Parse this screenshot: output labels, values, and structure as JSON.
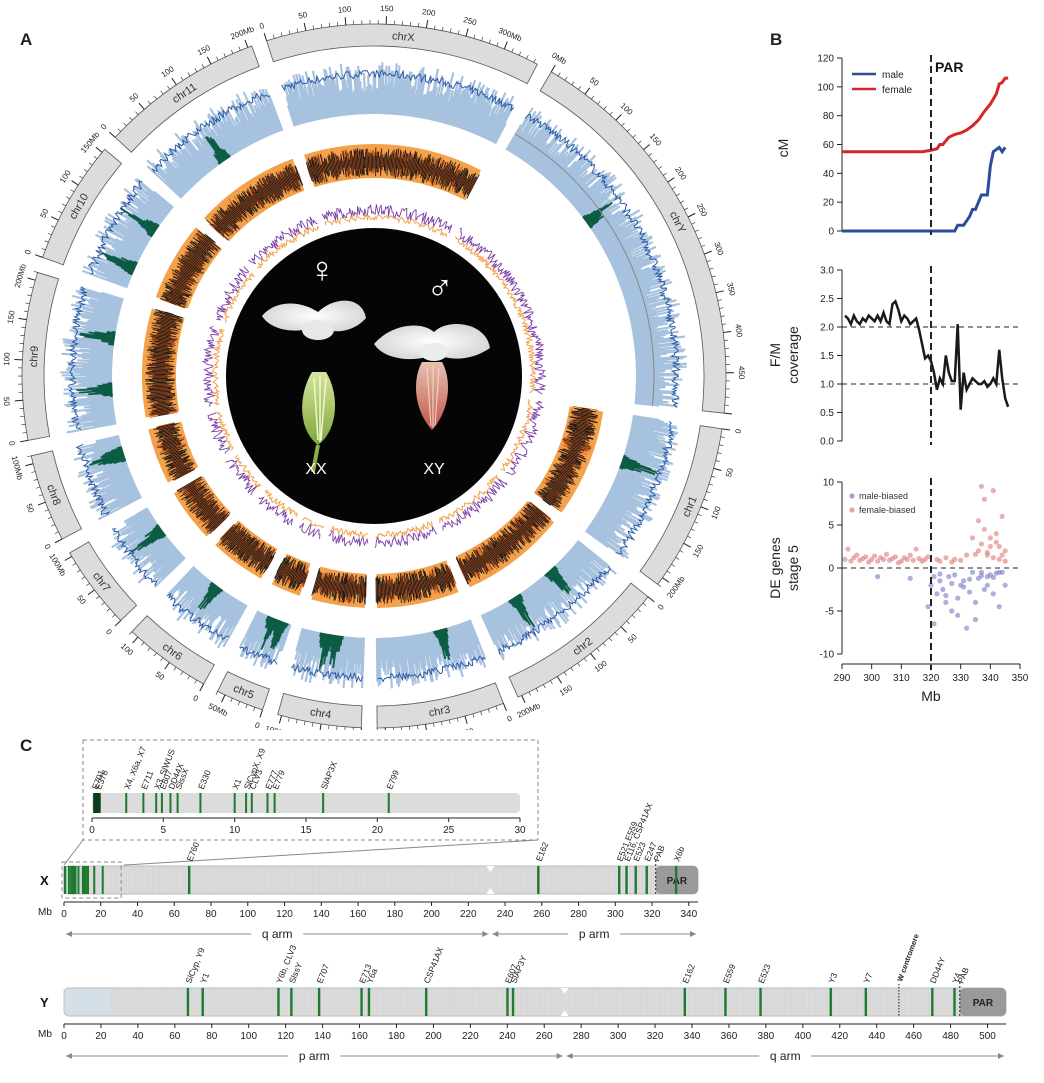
{
  "panels": {
    "a": "A",
    "b": "B",
    "c": "C"
  },
  "circos": {
    "chromosomes": [
      {
        "name": "chrX",
        "len": 345,
        "ticks": [
          0,
          50,
          100,
          150,
          200,
          250,
          300
        ],
        "unit_tick": 300
      },
      {
        "name": "chrY",
        "len": 500,
        "ticks": [
          0,
          50,
          100,
          150,
          200,
          250,
          300,
          350,
          400,
          450
        ],
        "unit_tick": 0
      },
      {
        "name": "chr1",
        "len": 210,
        "ticks": [
          0,
          50,
          100,
          150,
          200
        ],
        "unit_tick": 200
      },
      {
        "name": "chr2",
        "len": 205,
        "ticks": [
          0,
          50,
          100,
          150,
          200
        ],
        "unit_tick": 200
      },
      {
        "name": "chr3",
        "len": 160,
        "ticks": [
          0,
          50,
          100,
          150
        ],
        "unit_tick": 150
      },
      {
        "name": "chr4",
        "len": 105,
        "ticks": [
          0,
          50,
          100
        ],
        "unit_tick": 100
      },
      {
        "name": "chr5",
        "len": 60,
        "ticks": [
          0,
          50
        ],
        "unit_tick": 50
      },
      {
        "name": "chr6",
        "len": 110,
        "ticks": [
          0,
          50,
          100
        ],
        "unit_tick": -1
      },
      {
        "name": "chr7",
        "len": 105,
        "ticks": [
          0,
          50,
          100
        ],
        "unit_tick": 100
      },
      {
        "name": "chr8",
        "len": 110,
        "ticks": [
          0,
          50,
          100
        ],
        "unit_tick": 100
      },
      {
        "name": "chr9",
        "len": 210,
        "ticks": [
          0,
          50,
          100,
          150,
          200
        ],
        "unit_tick": 200
      },
      {
        "name": "chr10",
        "len": 155,
        "ticks": [
          0,
          50,
          100,
          150
        ],
        "unit_tick": 150
      },
      {
        "name": "chr11",
        "len": 205,
        "ticks": [
          0,
          50,
          100,
          150,
          200
        ],
        "unit_tick": 200
      }
    ],
    "unit_suffix": "Mb",
    "center": {
      "female_label": "XX",
      "male_label": "XY",
      "female_symbol": "♀",
      "male_symbol": "♂"
    }
  },
  "chart_data": [
    {
      "type": "line",
      "panel": "B-top",
      "xlim": [
        290,
        350
      ],
      "ylim": [
        0,
        120
      ],
      "yticks": [
        0,
        20,
        40,
        60,
        80,
        100,
        120
      ],
      "ylabel": "cM",
      "annotation": "PAR",
      "vline_x": 320,
      "legend_placement": "top-left",
      "series": [
        {
          "name": "male",
          "color": "#2b4d9c",
          "x": [
            290,
            300,
            310,
            318,
            326,
            328,
            329,
            331,
            333,
            334,
            335,
            337,
            338,
            339,
            340,
            341,
            343,
            344,
            345
          ],
          "y": [
            0,
            0,
            0,
            0,
            0,
            0,
            4,
            4,
            10,
            15,
            15,
            25,
            25,
            25,
            45,
            55,
            58,
            55,
            58
          ]
        },
        {
          "name": "female",
          "color": "#d62728",
          "x": [
            290,
            300,
            310,
            317,
            320,
            322,
            323,
            324,
            326,
            328,
            330,
            332,
            334,
            336,
            338,
            340,
            342,
            343,
            344,
            345,
            346
          ],
          "y": [
            55,
            55,
            55,
            55,
            56,
            57,
            60,
            60,
            65,
            67,
            68,
            70,
            73,
            77,
            83,
            88,
            95,
            102,
            103,
            106,
            106
          ]
        }
      ]
    },
    {
      "type": "line",
      "panel": "B-middle",
      "xlim": [
        290,
        350
      ],
      "ylim": [
        0,
        3
      ],
      "yticks": [
        0.0,
        0.5,
        1.0,
        1.5,
        2.0,
        2.5,
        3.0
      ],
      "ylabel": "F/M coverage",
      "hlines": [
        2.0,
        1.0
      ],
      "vline_x": 320,
      "series": [
        {
          "name": "",
          "color": "#1a1a1a",
          "x": [
            291,
            292,
            293,
            294,
            295,
            296,
            297,
            298,
            299,
            300,
            301,
            302,
            303,
            304,
            305,
            306,
            307,
            308,
            309,
            310,
            311,
            312,
            313,
            314,
            315,
            316,
            317,
            318,
            319,
            320,
            321,
            322,
            323,
            324,
            325,
            326,
            327,
            328,
            329,
            330,
            331,
            332,
            333,
            334,
            335,
            336,
            337,
            338,
            339,
            340,
            341,
            342,
            343,
            344,
            345,
            346
          ],
          "y": [
            2.2,
            2.15,
            2.05,
            2.2,
            2.1,
            2.05,
            2.15,
            2.1,
            2.2,
            2.15,
            2.1,
            2.2,
            2.1,
            2.25,
            2.1,
            2.05,
            2.4,
            2.45,
            2.3,
            2.1,
            2.2,
            2.15,
            2.05,
            2.1,
            2.15,
            1.95,
            1.7,
            1.45,
            1.5,
            1.4,
            1.2,
            0.9,
            1.1,
            1.0,
            1.5,
            1.2,
            1.05,
            1.05,
            2.05,
            0.55,
            1.2,
            0.9,
            1.0,
            1.1,
            1.05,
            1.0,
            1.0,
            1.05,
            0.95,
            1.0,
            1.1,
            1.0,
            1.6,
            1.1,
            0.75,
            0.6
          ]
        }
      ]
    },
    {
      "type": "scatter",
      "panel": "B-bottom",
      "xlim": [
        290,
        350
      ],
      "ylim": [
        -10,
        10
      ],
      "yticks": [
        -10,
        -5,
        0,
        5,
        10
      ],
      "xticks": [
        290,
        300,
        310,
        320,
        330,
        340,
        350
      ],
      "ylabel": "DE genes stage 5",
      "xlabel": "Mb",
      "vline_x": 320,
      "hline_y": 0,
      "legend_placement": "top-left",
      "series": [
        {
          "name": "male-biased",
          "color": "#7a79c4",
          "x": [
            302,
            313,
            319,
            320,
            321,
            322,
            323,
            324,
            325,
            326,
            327,
            328,
            329,
            330,
            331,
            332,
            333,
            334,
            335,
            336,
            337,
            338,
            339,
            340,
            341,
            342,
            343,
            344,
            345,
            321,
            323,
            325,
            327,
            329,
            331,
            333,
            335,
            337,
            339,
            341,
            343
          ],
          "y": [
            -1.0,
            -1.2,
            -4.5,
            -2.0,
            -6.5,
            -3.0,
            -1.5,
            -2.5,
            -4.0,
            -1.0,
            -5.0,
            -0.8,
            -3.5,
            -2.0,
            -1.5,
            -7.0,
            -2.8,
            -0.5,
            -4.0,
            -1.2,
            -0.5,
            -2.5,
            -1.0,
            -0.8,
            -3.0,
            -0.6,
            -4.5,
            -0.5,
            -2.0,
            -1.0,
            -0.7,
            -3.2,
            -1.8,
            -5.5,
            -2.2,
            -1.3,
            -6.0,
            -0.9,
            -2.0,
            -1.1,
            -0.5
          ]
        },
        {
          "name": "female-biased",
          "color": "#e07a7a",
          "x": [
            291,
            292,
            293,
            294,
            295,
            296,
            297,
            298,
            299,
            300,
            301,
            302,
            303,
            304,
            305,
            306,
            307,
            308,
            309,
            310,
            311,
            312,
            313,
            314,
            315,
            316,
            317,
            318,
            319,
            322,
            323,
            325,
            327,
            328,
            330,
            332,
            334,
            336,
            337,
            338,
            339,
            340,
            341,
            342,
            343,
            344,
            345,
            336,
            337,
            338,
            339,
            340,
            341,
            342,
            343,
            344,
            345,
            335
          ],
          "y": [
            1.0,
            2.2,
            0.8,
            1.2,
            1.5,
            0.9,
            1.1,
            1.3,
            0.7,
            1.0,
            1.4,
            0.8,
            1.2,
            1.0,
            1.6,
            0.9,
            1.1,
            1.3,
            0.6,
            0.8,
            1.2,
            1.0,
            1.5,
            0.9,
            2.2,
            1.1,
            0.8,
            1.0,
            1.3,
            1.0,
            0.8,
            1.2,
            0.7,
            1.0,
            0.9,
            1.5,
            3.5,
            2.0,
            9.5,
            4.5,
            1.5,
            2.5,
            9.0,
            3.0,
            1.0,
            6.0,
            2.0,
            5.5,
            2.8,
            8.0,
            1.8,
            3.5,
            1.2,
            4.0,
            2.5,
            1.5,
            0.8,
            1.6
          ]
        }
      ]
    },
    {
      "type": "heatmap",
      "panel": "C-inset",
      "description_axis": "X first 30 Mb",
      "xlim": [
        0,
        30
      ],
      "xticks": [
        0,
        5,
        10,
        15,
        20,
        25,
        30
      ],
      "markers": [
        {
          "label": "E701",
          "x": 0.15
        },
        {
          "label": "E378",
          "x": 0.4
        },
        {
          "label": "X4, X6a, X7",
          "x": 2.4
        },
        {
          "label": "E711",
          "x": 3.6
        },
        {
          "label": "X3, SlWUS",
          "x": 4.5
        },
        {
          "label": "E607",
          "x": 4.9
        },
        {
          "label": "DD44X",
          "x": 5.5
        },
        {
          "label": "SlssX",
          "x": 6.0
        },
        {
          "label": "E330",
          "x": 7.6
        },
        {
          "label": "X1",
          "x": 10.0
        },
        {
          "label": "SlCypX, X9",
          "x": 10.8
        },
        {
          "label": "CLV3",
          "x": 11.2
        },
        {
          "label": "E777",
          "x": 12.3
        },
        {
          "label": "E779",
          "x": 12.8
        },
        {
          "label": "SlAP3X",
          "x": 16.2
        },
        {
          "label": "E799",
          "x": 20.8
        }
      ]
    },
    {
      "type": "heatmap",
      "panel": "C-X",
      "chrom_label": "X",
      "axis_unit": "Mb",
      "xlim": [
        0,
        345
      ],
      "xticks": [
        0,
        20,
        40,
        60,
        80,
        100,
        120,
        140,
        160,
        180,
        200,
        220,
        240,
        260,
        280,
        300,
        320,
        340
      ],
      "centromere_x": 232,
      "par_start": 322,
      "par_label": "PAR",
      "pab_label": "PAB",
      "markers": [
        {
          "label": "E760",
          "x": 68
        },
        {
          "label": "E162",
          "x": 258
        },
        {
          "label": "E521,E559",
          "x": 302
        },
        {
          "label": "E116, CSP41AX",
          "x": 306
        },
        {
          "label": "E523",
          "x": 311
        },
        {
          "label": "E247",
          "x": 317
        },
        {
          "label": "X6b",
          "x": 333
        }
      ],
      "arms": [
        {
          "label": "q arm",
          "from": 0,
          "to": 232
        },
        {
          "label": "p arm",
          "from": 232,
          "to": 345
        }
      ]
    },
    {
      "type": "heatmap",
      "panel": "C-Y",
      "chrom_label": "Y",
      "axis_unit": "Mb",
      "xlim": [
        0,
        510
      ],
      "xticks": [
        0,
        20,
        40,
        60,
        80,
        100,
        120,
        140,
        160,
        180,
        200,
        220,
        240,
        260,
        280,
        300,
        320,
        340,
        360,
        380,
        400,
        420,
        440,
        460,
        480,
        500
      ],
      "centromere_x": 271,
      "w_centromere_x": 452,
      "w_centromere_label": "W centromere",
      "par_start": 485,
      "par_label": "PAR",
      "pab_label": "PAB",
      "markers": [
        {
          "label": "SlCyp, Y9",
          "x": 67
        },
        {
          "label": "Y1",
          "x": 75
        },
        {
          "label": "Y6b, CLV3",
          "x": 116
        },
        {
          "label": "SlssY",
          "x": 123
        },
        {
          "label": "E707",
          "x": 138
        },
        {
          "label": "E713",
          "x": 161
        },
        {
          "label": "Y6a",
          "x": 165
        },
        {
          "label": "CSP41AX",
          "x": 196
        },
        {
          "label": "E607",
          "x": 240
        },
        {
          "label": "SlAP3Y",
          "x": 243
        },
        {
          "label": "E162",
          "x": 336
        },
        {
          "label": "E559",
          "x": 358
        },
        {
          "label": "E523",
          "x": 377
        },
        {
          "label": "Y3",
          "x": 415
        },
        {
          "label": "Y7",
          "x": 434
        },
        {
          "label": "DD44Y",
          "x": 470
        },
        {
          "label": "Y4",
          "x": 482
        }
      ],
      "arms": [
        {
          "label": "p arm",
          "from": 0,
          "to": 271
        },
        {
          "label": "q arm",
          "from": 271,
          "to": 510
        }
      ]
    }
  ],
  "colors": {
    "male": "#2b4d9c",
    "female": "#d62728",
    "dark_green": "#0d5c45",
    "light_blue": "#a7c2de",
    "line_blue": "#2d5aa6",
    "orange": "#f3a14a",
    "dark_orange": "#d55c1b",
    "purple": "#7b3fa6",
    "band_green": "#1e7a2e",
    "chrom_gray": "#dcdcdc",
    "par_gray": "#9a9a9a",
    "black_bar": "#1a1a1a"
  }
}
